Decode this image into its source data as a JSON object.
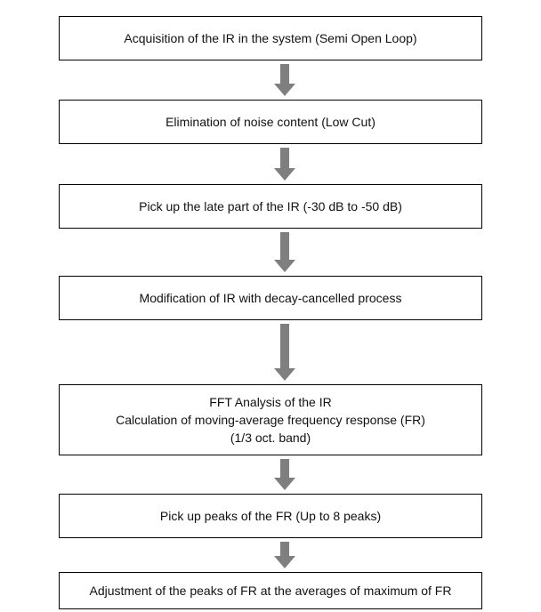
{
  "steps": [
    {
      "lines": [
        "Acquisition of the IR in the system (Semi Open Loop)"
      ]
    },
    {
      "lines": [
        "Elimination of noise content (Low Cut)"
      ]
    },
    {
      "lines": [
        "Pick up the late part of the IR (-30 dB to -50 dB)"
      ]
    },
    {
      "lines": [
        "Modification of IR with decay-cancelled process"
      ]
    },
    {
      "lines": [
        "FFT Analysis of the IR",
        "Calculation of moving-average frequency response (FR)",
        "(1/3 oct. band)"
      ]
    },
    {
      "lines": [
        "Pick up peaks of  the FR (Up to 8 peaks)"
      ]
    },
    {
      "lines": [
        "Adjustment of the peaks of FR at the averages of maximum of FR"
      ]
    }
  ]
}
